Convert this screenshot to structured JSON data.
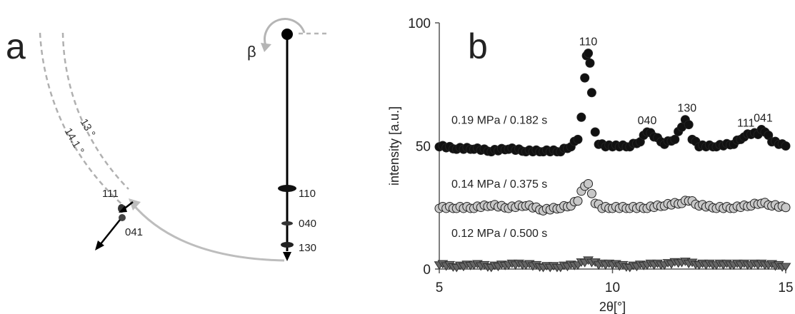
{
  "panel_a": {
    "label": "a",
    "beta_label": "β",
    "arc_labels": [
      "13 °",
      "14.1 °"
    ],
    "reflections_meridian": [
      "110",
      "040",
      "130"
    ],
    "reflections_off": [
      "111",
      "041"
    ]
  },
  "chart_data": {
    "type": "scatter",
    "panel_label": "b",
    "xlabel": "2θ[°]",
    "ylabel": "intensity [a.u.]",
    "xlim": [
      5,
      15
    ],
    "ylim": [
      0,
      100
    ],
    "xticks": [
      5,
      10,
      15
    ],
    "yticks": [
      0,
      50,
      100
    ],
    "grid": false,
    "series": [
      {
        "name": "0.19 MPa / 0.182 s",
        "marker": "circle",
        "color": "#111111",
        "x": [
          5.0,
          5.5,
          6.0,
          6.5,
          7.0,
          7.5,
          8.0,
          8.5,
          8.8,
          9.0,
          9.1,
          9.2,
          9.25,
          9.3,
          9.35,
          9.4,
          9.5,
          9.6,
          9.8,
          10.0,
          10.5,
          10.8,
          11.0,
          11.2,
          11.5,
          11.8,
          12.0,
          12.1,
          12.2,
          12.3,
          12.5,
          13.0,
          13.5,
          13.8,
          14.0,
          14.2,
          14.3,
          14.4,
          14.6,
          15.0
        ],
        "y": [
          50,
          49,
          49,
          48,
          49,
          48,
          48,
          48,
          50,
          53,
          62,
          78,
          87,
          88,
          84,
          72,
          56,
          51,
          50,
          50,
          50,
          52,
          56,
          54,
          51,
          53,
          58,
          61,
          59,
          53,
          50,
          50,
          51,
          54,
          55,
          55,
          57,
          56,
          52,
          50
        ]
      },
      {
        "name": "0.14 MPa / 0.375 s",
        "marker": "circle",
        "color": "#c8c8c8",
        "x": [
          5.0,
          5.5,
          6.0,
          6.5,
          7.0,
          7.5,
          8.0,
          8.5,
          8.8,
          9.0,
          9.1,
          9.2,
          9.3,
          9.4,
          9.5,
          9.7,
          10.0,
          10.5,
          11.0,
          11.5,
          12.0,
          12.2,
          12.5,
          13.0,
          13.5,
          14.0,
          14.3,
          14.6,
          15.0
        ],
        "y": [
          25,
          25,
          25,
          26,
          25,
          26,
          24,
          25,
          26,
          28,
          32,
          34,
          35,
          31,
          27,
          25,
          25,
          25,
          25,
          26,
          27,
          28,
          26,
          25,
          25,
          26,
          27,
          26,
          25
        ]
      },
      {
        "name": "0.12 MPa / 0.500 s",
        "marker": "triangle-down",
        "color": "#666666",
        "x": [
          5.0,
          5.5,
          6.0,
          6.5,
          7.0,
          7.5,
          8.0,
          8.5,
          9.0,
          9.2,
          9.3,
          9.4,
          9.6,
          10.0,
          10.5,
          11.0,
          11.5,
          12.0,
          12.5,
          13.0,
          13.5,
          14.0,
          14.5,
          15.0
        ],
        "y": [
          2,
          1,
          2,
          1,
          2,
          2,
          1,
          1,
          2,
          3,
          4,
          3,
          2,
          2,
          1,
          2,
          2,
          3,
          2,
          2,
          2,
          2,
          2,
          1
        ]
      }
    ],
    "peak_labels": [
      {
        "text": "110",
        "x": 9.3,
        "y": 88
      },
      {
        "text": "040",
        "x": 11.0,
        "y": 56
      },
      {
        "text": "130",
        "x": 12.15,
        "y": 61
      },
      {
        "text": "111",
        "x": 13.85,
        "y": 55
      },
      {
        "text": "041",
        "x": 14.35,
        "y": 57
      }
    ]
  }
}
